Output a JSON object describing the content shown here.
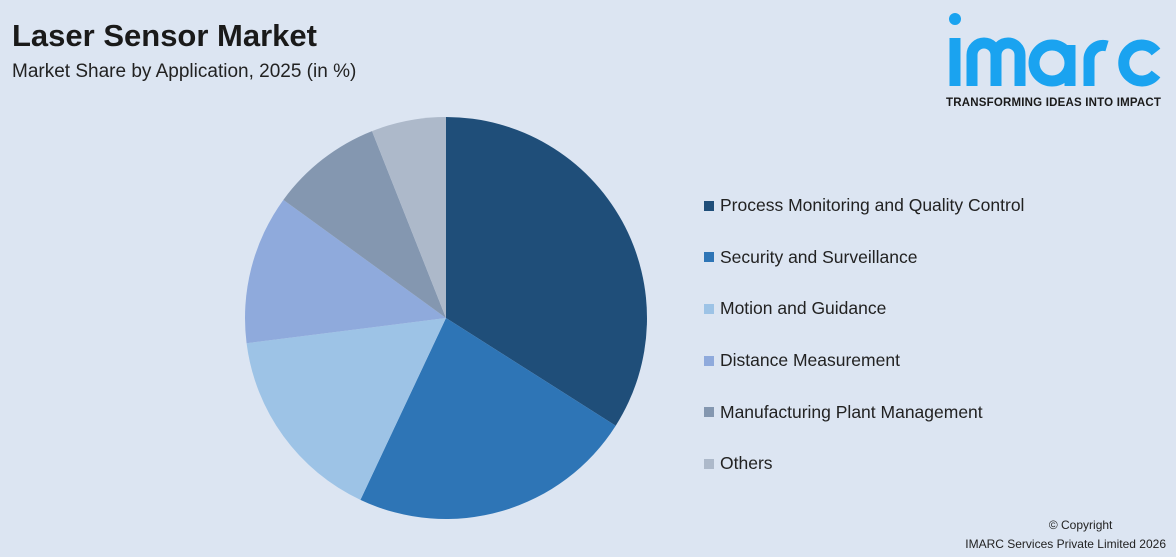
{
  "header": {
    "title": "Laser Sensor Market",
    "subtitle": "Market Share by Application, 2025 (in %)"
  },
  "logo": {
    "text": "imarc",
    "tagline": "TRANSFORMING IDEAS INTO IMPACT",
    "color": "#1aa3f0"
  },
  "footer": {
    "copyright": "© Copyright",
    "company": "IMARC Services Private Limited 2026"
  },
  "chart_data": {
    "type": "pie",
    "title": "Laser Sensor Market",
    "subtitle": "Market Share by Application, 2025 (in %)",
    "categories": [
      "Process Monitoring and Quality Control",
      "Security and Surveillance",
      "Motion and Guidance",
      "Distance Measurement",
      "Manufacturing Plant Management",
      "Others"
    ],
    "values": [
      34,
      23,
      16,
      12,
      9,
      6
    ],
    "colors": [
      "#1f4e79",
      "#2e75b6",
      "#9dc3e6",
      "#8faadc",
      "#8497b0",
      "#adb9ca"
    ],
    "start_angle": "top, clockwise",
    "legend_placement": "right"
  }
}
